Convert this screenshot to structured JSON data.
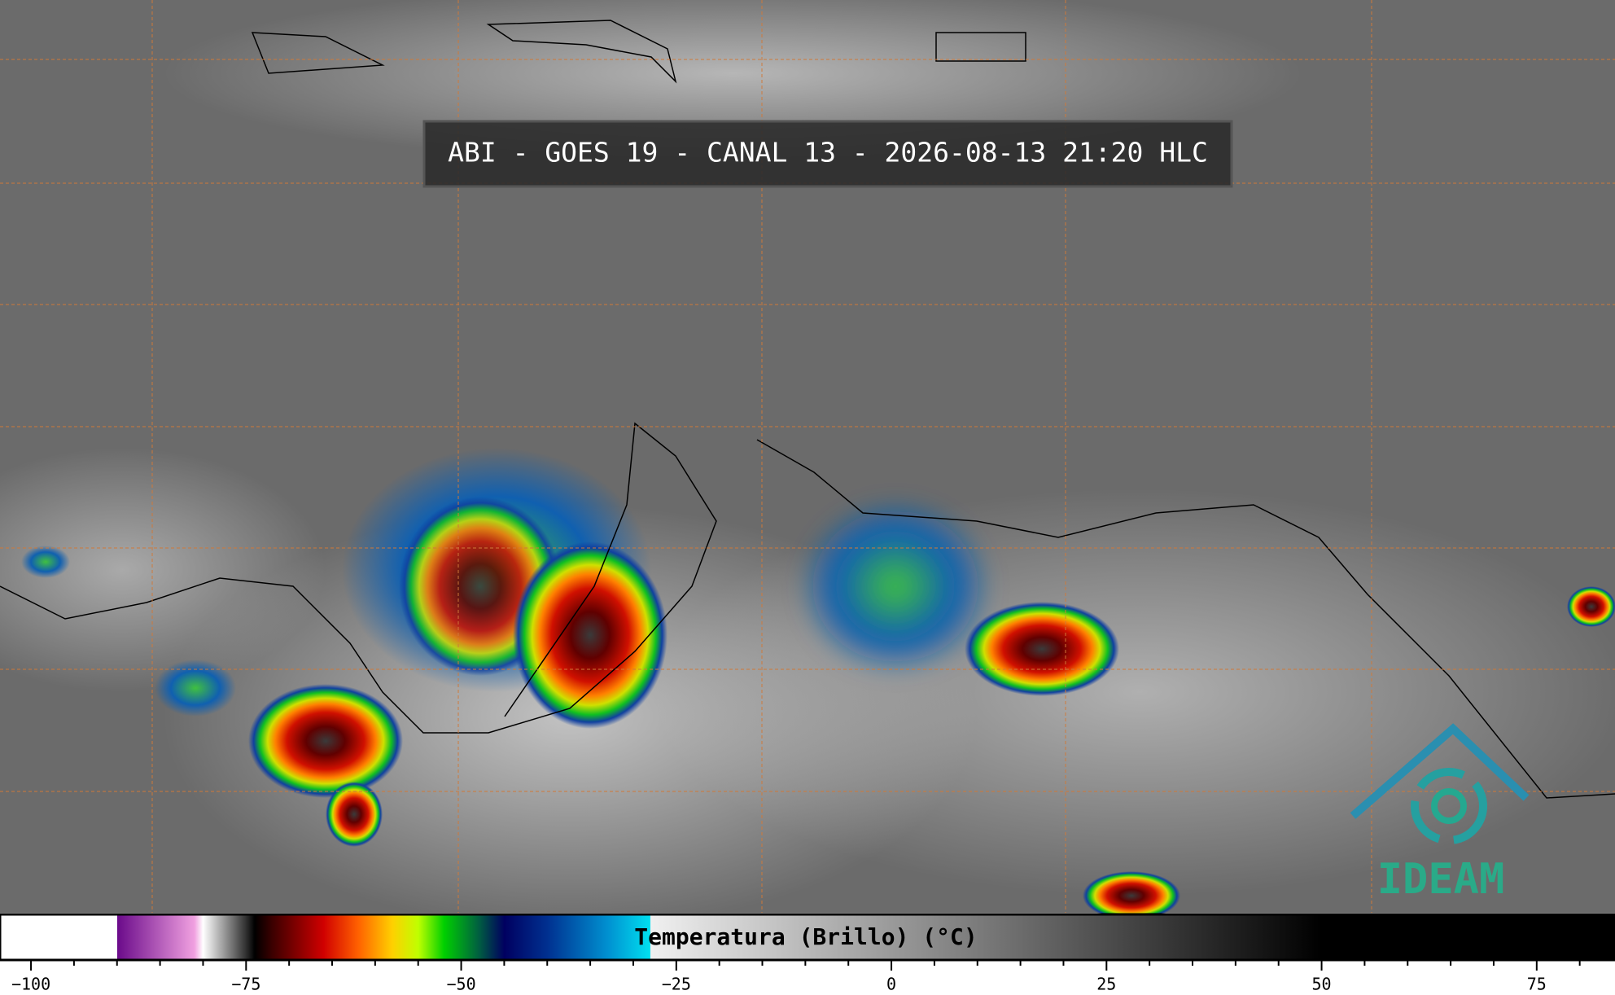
{
  "title": "ABI - GOES 19 - CANAL 13 - 2026-08-13 21:20 HLC",
  "logo": {
    "text": "IDEAM"
  },
  "colorbar": {
    "label": "Temperatura (Brillo) (°C)",
    "xlim": [
      -103.6,
      84.1
    ],
    "xticks": [
      {
        "value": -100,
        "label": "−100"
      },
      {
        "value": -75,
        "label": "−75"
      },
      {
        "value": -50,
        "label": "−50"
      },
      {
        "value": -25,
        "label": "−25"
      },
      0,
      25,
      50,
      75
    ],
    "minor_ticks": [
      -95,
      -90,
      -85,
      -80,
      -70,
      -65,
      -60,
      -55,
      -45,
      -40,
      -35,
      -30,
      -20,
      -15,
      -10,
      -5,
      5,
      10,
      15,
      20,
      30,
      35,
      40,
      45,
      55,
      60,
      65,
      70,
      80
    ],
    "colorscale": [
      {
        "value": -90,
        "color": "#ffffff"
      },
      {
        "value": -90,
        "color": "#6a0a8a"
      },
      {
        "value": -81,
        "color": "#f0a0e0"
      },
      {
        "value": -80,
        "color": "#ffffff"
      },
      {
        "value": -75,
        "color": "#303030"
      },
      {
        "value": -74,
        "color": "#000000"
      },
      {
        "value": -72,
        "color": "#3a0000"
      },
      {
        "value": -66,
        "color": "#d00000"
      },
      {
        "value": -62,
        "color": "#ff6000"
      },
      {
        "value": -58,
        "color": "#ffd000"
      },
      {
        "value": -55,
        "color": "#c0ff00"
      },
      {
        "value": -52,
        "color": "#00d000"
      },
      {
        "value": -48,
        "color": "#006040"
      },
      {
        "value": -45,
        "color": "#000060"
      },
      {
        "value": -40,
        "color": "#003090"
      },
      {
        "value": -33,
        "color": "#0090d0"
      },
      {
        "value": -28,
        "color": "#00e0f0"
      },
      {
        "value": -28,
        "color": "#f0f0f0"
      },
      {
        "value": 50,
        "color": "#000000"
      }
    ]
  }
}
